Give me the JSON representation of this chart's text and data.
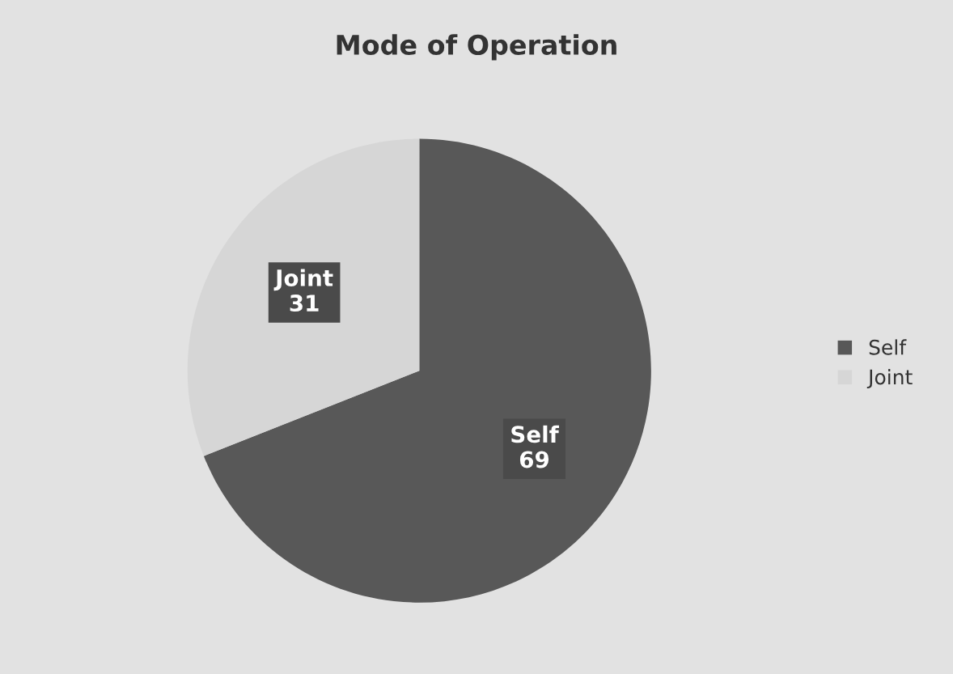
{
  "chart_data": {
    "type": "pie",
    "title": "Mode of Operation",
    "categories": [
      "Self",
      "Joint"
    ],
    "values": [
      69,
      31
    ],
    "colors": [
      "#585858",
      "#d6d6d6"
    ],
    "data_labels": true,
    "legend": "right"
  }
}
